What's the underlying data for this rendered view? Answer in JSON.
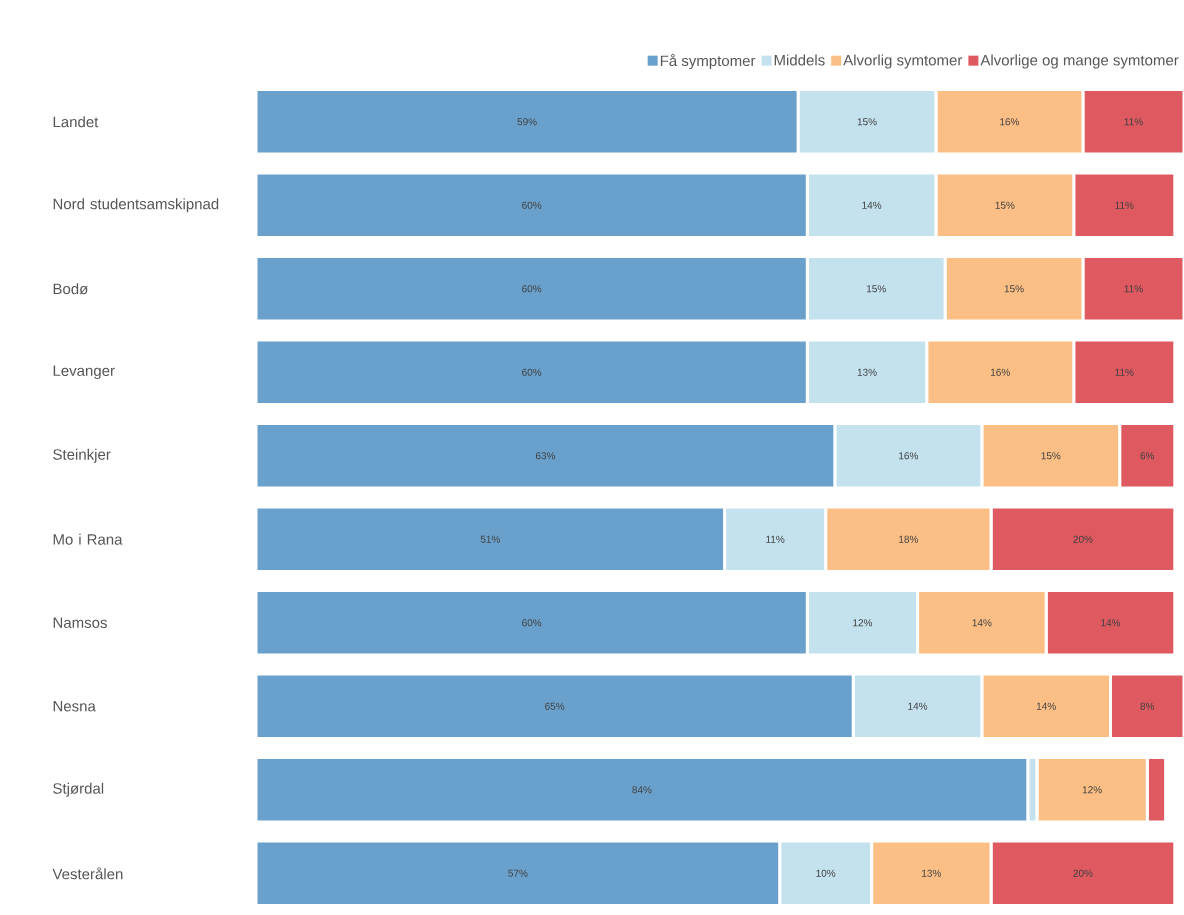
{
  "chart_data": {
    "type": "bar",
    "orientation": "horizontal",
    "stacked": true,
    "legend": "top right",
    "categories": [
      "Landet",
      "Nord studentsamskipnad",
      "Bodø",
      "Levanger",
      "Steinkjer",
      "Mo i Rana",
      "Namsos",
      "Nesna",
      "Stjørdal",
      "Vesterålen"
    ],
    "series": [
      {
        "name": "Få symptomer",
        "color": "#6aa1cc",
        "values": [
          59,
          60,
          60,
          60,
          63,
          51,
          60,
          65,
          84,
          57
        ],
        "value_labels": [
          "59%",
          "60%",
          "60%",
          "60%",
          "63%",
          "51%",
          "60%",
          "65%",
          "84%",
          "57%"
        ]
      },
      {
        "name": "Middels",
        "color": "#c3e2ee",
        "values": [
          15,
          14,
          15,
          13,
          16,
          11,
          12,
          14,
          1,
          10
        ],
        "value_labels": [
          "15%",
          "14%",
          "15%",
          "13%",
          "16%",
          "11%",
          "12%",
          "14%",
          null,
          "10%"
        ]
      },
      {
        "name": "Alvorlig symtomer",
        "color": "#fbbf85",
        "values": [
          16,
          15,
          15,
          16,
          15,
          18,
          14,
          14,
          12,
          13
        ],
        "value_labels": [
          "16%",
          "15%",
          "15%",
          "16%",
          "15%",
          "18%",
          "14%",
          "14%",
          "12%",
          "13%"
        ]
      },
      {
        "name": "Alvorlige og mange symtomer",
        "color": "#de5a60",
        "values": [
          11,
          11,
          11,
          11,
          6,
          20,
          14,
          8,
          2,
          20
        ],
        "value_labels": [
          "11%",
          "11%",
          "11%",
          "11%",
          "6%",
          "20%",
          "14%",
          "8%",
          null,
          "20%"
        ]
      }
    ]
  }
}
